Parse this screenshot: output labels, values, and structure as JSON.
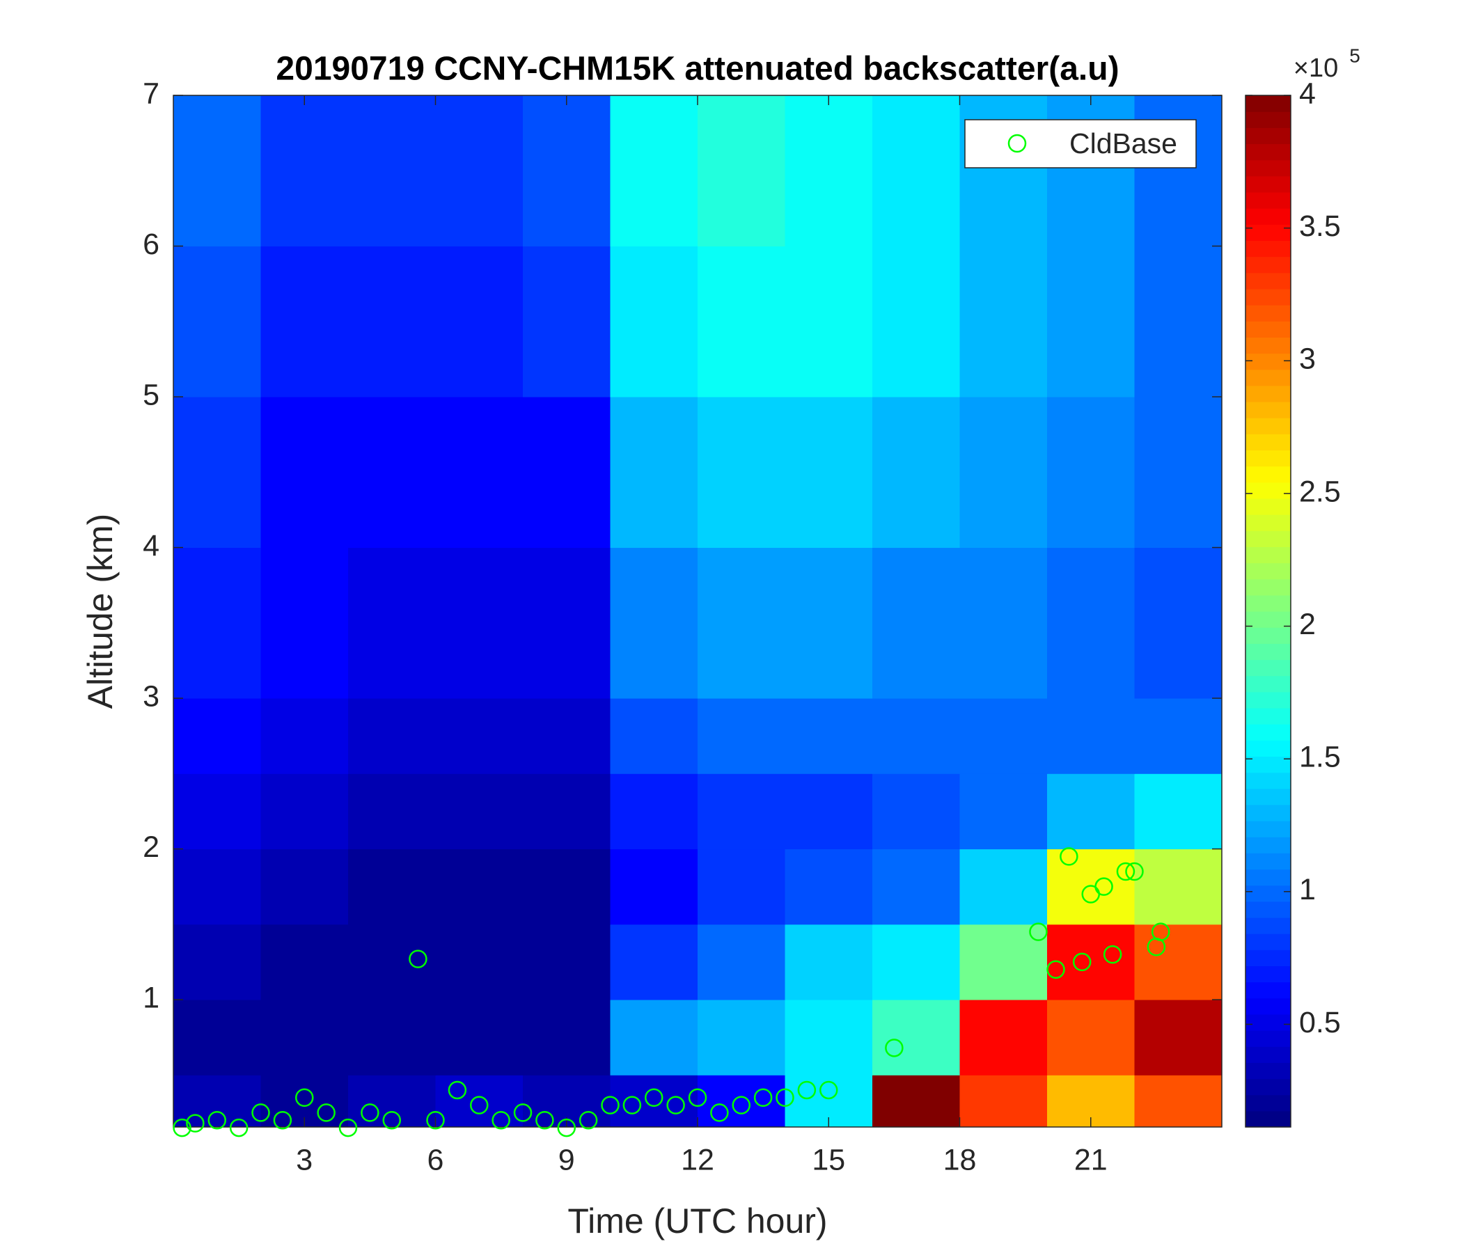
{
  "chart_data": {
    "type": "heatmap",
    "title": "20190719 CCNY-CHM15K attenuated backscatter(a.u)",
    "x_label": "Time (UTC hour)",
    "y_label": "Altitude (km)",
    "xlim": [
      0,
      24
    ],
    "xticks": [
      3,
      6,
      9,
      12,
      15,
      18,
      21
    ],
    "ylim": [
      0.155,
      7
    ],
    "yticks": [
      1,
      2,
      3,
      4,
      5,
      6,
      7
    ],
    "x_edges": [
      0,
      2,
      4,
      6,
      8,
      10,
      12,
      14,
      16,
      18,
      20,
      22,
      24
    ],
    "y_edges": [
      0.155,
      0.5,
      1,
      1.5,
      2,
      2.5,
      3,
      4,
      5,
      6,
      7
    ],
    "z": [
      [
        0.3,
        0.2,
        0.3,
        0.4,
        0.3,
        0.4,
        0.6,
        1.5,
        4,
        3.3,
        2.8,
        3.2
      ],
      [
        0.2,
        0.2,
        0.2,
        0.2,
        0.2,
        1.2,
        1.3,
        1.5,
        1.8,
        3.5,
        3.2,
        3.8
      ],
      [
        0.3,
        0.2,
        0.2,
        0.2,
        0.2,
        0.8,
        1.0,
        1.4,
        1.5,
        2.0,
        3.5,
        3.2
      ],
      [
        0.4,
        0.3,
        0.2,
        0.2,
        0.2,
        0.6,
        0.8,
        0.9,
        1.0,
        1.4,
        2.5,
        2.3
      ],
      [
        0.5,
        0.4,
        0.3,
        0.3,
        0.3,
        0.7,
        0.8,
        0.8,
        0.9,
        1.0,
        1.3,
        1.5
      ],
      [
        0.6,
        0.5,
        0.4,
        0.4,
        0.4,
        0.9,
        1.0,
        1.0,
        1.0,
        1.0,
        1.0,
        1.0
      ],
      [
        0.7,
        0.6,
        0.5,
        0.5,
        0.5,
        1.1,
        1.2,
        1.2,
        1.1,
        1.1,
        1.0,
        0.9
      ],
      [
        0.8,
        0.6,
        0.6,
        0.6,
        0.6,
        1.3,
        1.4,
        1.4,
        1.3,
        1.2,
        1.1,
        1.0
      ],
      [
        0.9,
        0.7,
        0.7,
        0.7,
        0.8,
        1.5,
        1.6,
        1.6,
        1.5,
        1.3,
        1.2,
        1.0
      ],
      [
        1.0,
        0.8,
        0.8,
        0.8,
        0.9,
        1.6,
        1.7,
        1.6,
        1.5,
        1.3,
        1.2,
        1.0
      ]
    ],
    "colormap": "jet",
    "clim": [
      0.113,
      4
    ],
    "cticks": [
      0.5,
      1,
      1.5,
      2,
      2.5,
      3,
      3.5,
      4
    ],
    "colorbar_multiplier": "×10",
    "colorbar_exponent": "5",
    "series": [
      {
        "name": "CldBase",
        "type": "scatter",
        "color": "#00ff00",
        "x": [
          0.2,
          0.5,
          1,
          1.5,
          2,
          2.5,
          3,
          3.5,
          4,
          4.5,
          5,
          5.6,
          6,
          6.5,
          7,
          7.5,
          8,
          8.5,
          9,
          9.5,
          10,
          10.5,
          11,
          11.5,
          12,
          12.5,
          13,
          13.5,
          14,
          14.5,
          15,
          16.5,
          19.8,
          20.2,
          20.5,
          20.8,
          21,
          21.3,
          21.5,
          21.8,
          22,
          22.5,
          22.6
        ],
        "y": [
          0.15,
          0.18,
          0.2,
          0.15,
          0.25,
          0.2,
          0.35,
          0.25,
          0.15,
          0.25,
          0.2,
          1.27,
          0.2,
          0.4,
          0.3,
          0.2,
          0.25,
          0.2,
          0.15,
          0.2,
          0.3,
          0.3,
          0.35,
          0.3,
          0.35,
          0.25,
          0.3,
          0.35,
          0.35,
          0.4,
          0.4,
          0.68,
          1.45,
          1.2,
          1.95,
          1.25,
          1.7,
          1.75,
          1.3,
          1.85,
          1.85,
          1.35,
          1.45
        ]
      }
    ],
    "legend": "upper right"
  }
}
